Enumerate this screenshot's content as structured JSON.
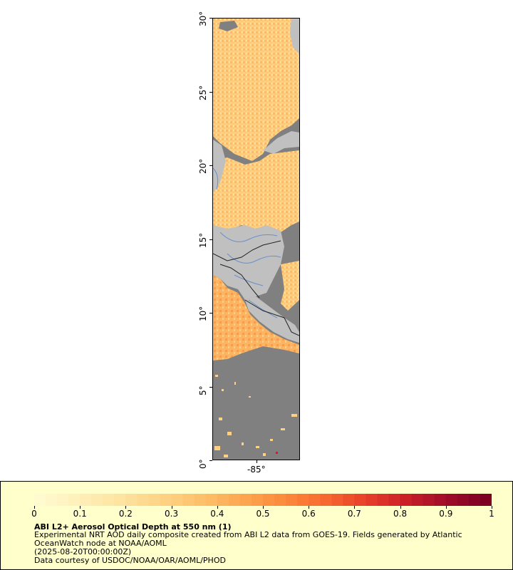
{
  "map": {
    "y_axis": {
      "ticks": [
        {
          "value": 0,
          "label": "0°"
        },
        {
          "value": 5,
          "label": "5°"
        },
        {
          "value": 10,
          "label": "10°"
        },
        {
          "value": 15,
          "label": "15°"
        },
        {
          "value": 20,
          "label": "20°"
        },
        {
          "value": 25,
          "label": "25°"
        },
        {
          "value": 30,
          "label": "30°"
        }
      ],
      "range": [
        0,
        30
      ]
    },
    "x_axis": {
      "ticks": [
        {
          "value": -85,
          "label": "-85°"
        }
      ]
    },
    "colors": {
      "ocean_nodata": "#808080",
      "land": "#c0c0c0",
      "river": "#6a8fc8",
      "border": "#202020"
    }
  },
  "legend": {
    "colorbar": {
      "min": 0,
      "max": 1,
      "labels": [
        "0",
        "0.1",
        "0.2",
        "0.3",
        "0.4",
        "0.5",
        "0.6",
        "0.7",
        "0.8",
        "0.9",
        "1"
      ],
      "colors": [
        "#fffad0",
        "#ffefb8",
        "#fee3a0",
        "#fed385",
        "#fec06a",
        "#fda650",
        "#fc8a3c",
        "#f86a30",
        "#e8402a",
        "#cc1f28",
        "#a00c2a",
        "#7d0023"
      ]
    },
    "title": "ABI L2+ Aerosol Optical Depth at 550 nm (1)",
    "line1": "Experimental NRT AOD daily composite created from ABI L2 data from GOES-19. Fields generated by Atlantic OceanWatch node at NOAA/AOML",
    "line2": "(2025-08-20T00:00:00Z)",
    "line3": "Data courtesy of USDOC/NOAA/OAR/AOML/PHOD"
  }
}
